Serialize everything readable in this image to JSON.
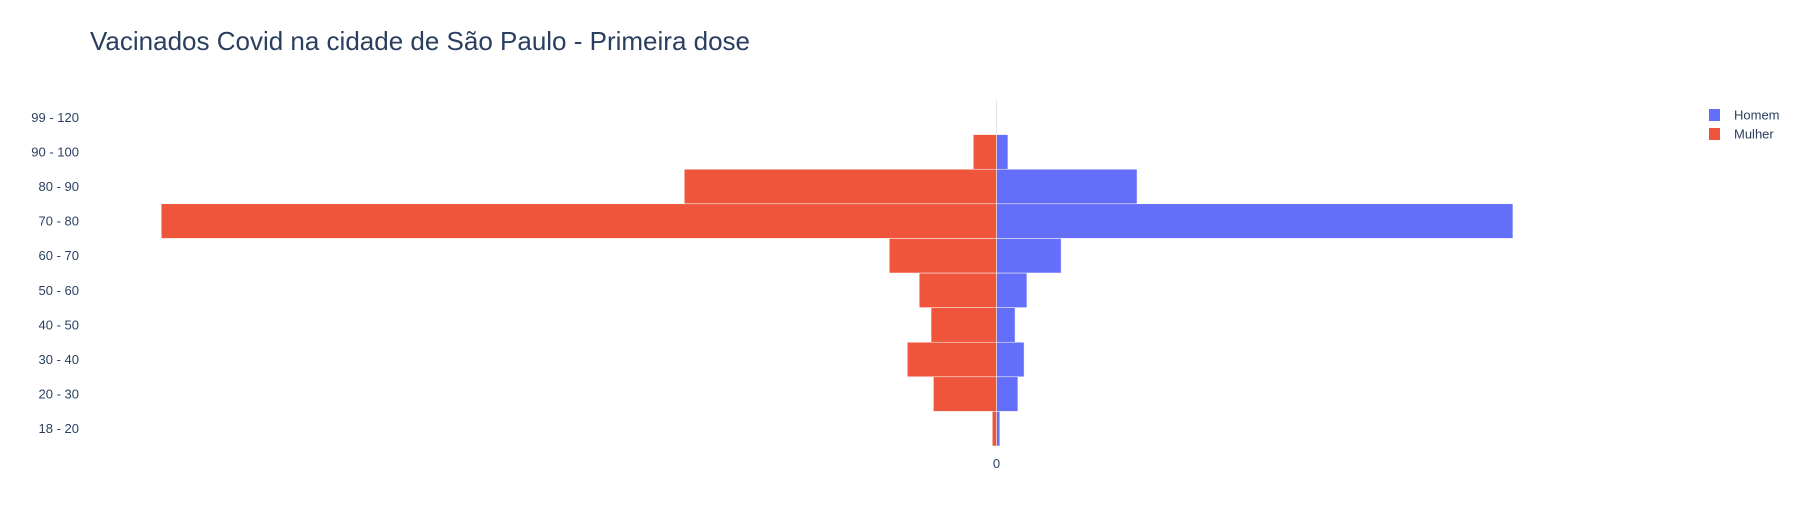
{
  "chart_data": {
    "type": "bar",
    "orientation": "horizontal",
    "title": "Vacinados Covid na cidade de São Paulo - Primeira dose",
    "categories": [
      "18 - 20",
      "20 - 30",
      "30 - 40",
      "40 - 50",
      "50 - 60",
      "60 - 70",
      "70 - 80",
      "80 - 90",
      "90 - 100",
      "99 - 120"
    ],
    "series": [
      {
        "name": "Homem",
        "color": "#636efa",
        "values": [
          0.7,
          4.5,
          5.8,
          3.9,
          6.4,
          13.6,
          108.8,
          29.6,
          2.4,
          0
        ]
      },
      {
        "name": "Mulher",
        "color": "#ef553b",
        "values": [
          -0.9,
          -13.3,
          -18.8,
          -13.8,
          -16.3,
          -22.6,
          -176.0,
          -65.8,
          -4.9,
          0
        ]
      }
    ],
    "barmode": "overlay",
    "xlim": [
      -191,
      148
    ],
    "x_ticks": [
      {
        "value": 0,
        "label": "0"
      }
    ],
    "grid": false,
    "zeroline": true,
    "legend_position": "top-right"
  }
}
